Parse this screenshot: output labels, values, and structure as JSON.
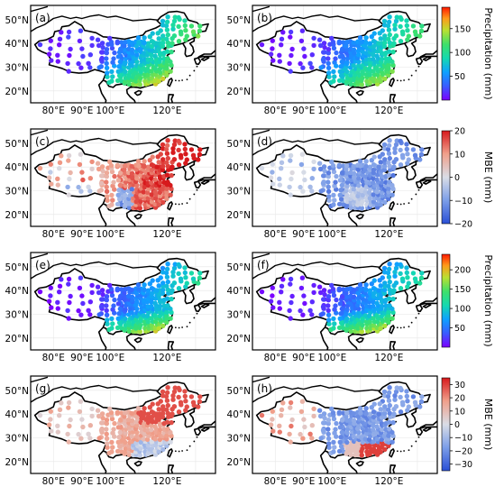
{
  "panels": [
    {
      "id": "a",
      "label": "(a)",
      "colormap": "precip",
      "pattern": "precip_a"
    },
    {
      "id": "b",
      "label": "(b)",
      "colormap": "precip",
      "pattern": "precip_b"
    },
    {
      "id": "c",
      "label": "(c)",
      "colormap": "mbe",
      "pattern": "mbe_c"
    },
    {
      "id": "d",
      "label": "(d)",
      "colormap": "mbe",
      "pattern": "mbe_d"
    },
    {
      "id": "e",
      "label": "(e)",
      "colormap": "precip",
      "pattern": "precip_e"
    },
    {
      "id": "f",
      "label": "(f)",
      "colormap": "precip",
      "pattern": "precip_f"
    },
    {
      "id": "g",
      "label": "(g)",
      "colormap": "mbe",
      "pattern": "mbe_g"
    },
    {
      "id": "h",
      "label": "(h)",
      "colormap": "mbe",
      "pattern": "mbe_h"
    }
  ],
  "axes": {
    "lon_ticks": [
      "80°E",
      "90°E",
      "100°E",
      "120°E"
    ],
    "lat_ticks": [
      "50°N",
      "40°N",
      "30°N",
      "20°N"
    ]
  },
  "colorbars": [
    {
      "label": "Precipitation (mm)",
      "ticks": [
        "50",
        "100",
        "150"
      ],
      "range": [
        0,
        195
      ],
      "colormap": "precip"
    },
    {
      "label": "MBE (mm)",
      "ticks": [
        "20",
        "10",
        "0",
        "−10",
        "−20"
      ],
      "range": [
        -20,
        20
      ],
      "colormap": "mbe"
    },
    {
      "label": "Precipitation (mm)",
      "ticks": [
        "50",
        "100",
        "150",
        "200"
      ],
      "range": [
        0,
        240
      ],
      "colormap": "precip"
    },
    {
      "label": "MBE (mm)",
      "ticks": [
        "30",
        "20",
        "10",
        "0",
        "−10",
        "−20",
        "−30"
      ],
      "range": [
        -35,
        35
      ],
      "colormap": "mbe"
    }
  ],
  "colors": {
    "precip_stops": [
      "#7b00ff",
      "#3a5cff",
      "#0ea0ff",
      "#14d9b0",
      "#3ee06a",
      "#b9e031",
      "#ff9a1a",
      "#ff1a00"
    ],
    "mbe_stops": [
      "#2a4fd6",
      "#7c9ee8",
      "#d9dde6",
      "#f0a08b",
      "#d7191c"
    ]
  }
}
